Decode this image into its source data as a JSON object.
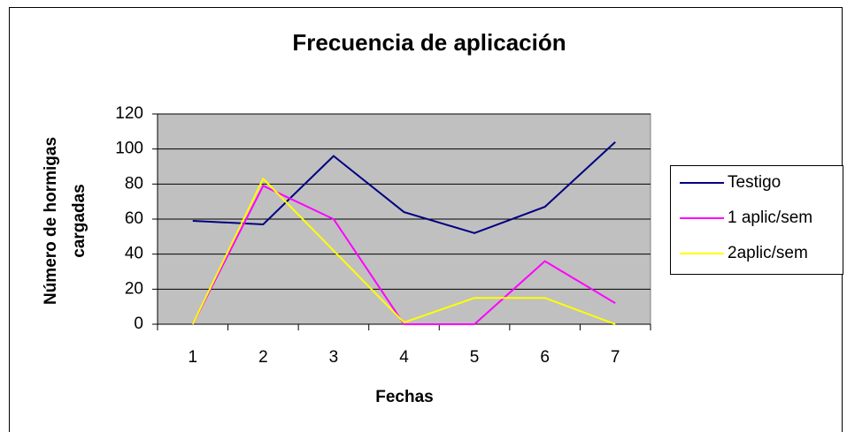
{
  "chart_data": {
    "type": "line",
    "title": "Frecuencia de aplicación",
    "x_label": "Fechas",
    "y_label": [
      "Número de hormigas",
      "cargadas"
    ],
    "categories": [
      "1",
      "2",
      "3",
      "4",
      "5",
      "6",
      "7"
    ],
    "series": [
      {
        "name": "Testigo",
        "color": "#000080",
        "values": [
          59,
          57,
          96,
          64,
          52,
          67,
          104
        ]
      },
      {
        "name": "1 aplic/sem",
        "color": "#ff00ff",
        "values": [
          0,
          79,
          60,
          0,
          0,
          36,
          12
        ]
      },
      {
        "name": "2aplic/sem",
        "color": "#ffff00",
        "values": [
          0,
          83,
          42,
          1,
          15,
          15,
          0
        ]
      }
    ],
    "ylim": [
      0,
      120
    ],
    "yticks": [
      0,
      20,
      40,
      60,
      80,
      100,
      120
    ],
    "grid": true,
    "legend": "right"
  }
}
